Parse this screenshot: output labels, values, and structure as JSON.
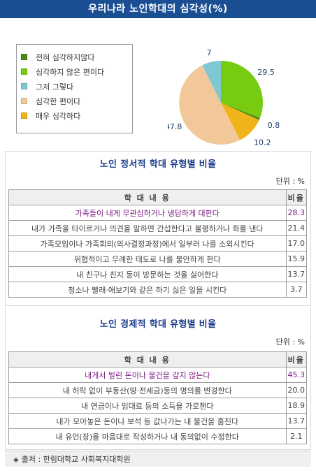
{
  "title": "우리나라 노인학대의 심각성(%)",
  "chart_data": {
    "type": "pie",
    "title": "우리나라 노인학대의 심각성(%)",
    "categories": [
      "전혀 심각하지않다",
      "심각하지 않은 편이다",
      "그저 그렇다",
      "심각한 편이다",
      "매우 심각하다"
    ],
    "values": [
      0.8,
      29.5,
      7,
      47.8,
      10.2
    ],
    "value_labels": [
      "0.8",
      "29.5",
      "7",
      "47.8",
      "10.2"
    ],
    "colors": [
      "#4d8c17",
      "#77cc12",
      "#7ec8d4",
      "#f2c89a",
      "#efb41a"
    ],
    "legend_placement": "left"
  },
  "section1": {
    "title": "노인 정서적 학대 유형별 비율",
    "unit": "단위 : %",
    "header": [
      "학 대 내 용",
      "비율"
    ],
    "rows": [
      {
        "text": "가족들이 내게 무관심하거나 냉담하게 대한다",
        "value": "28.3"
      },
      {
        "text": "내가 가족을 타이르거나 의견을 말하면 간섭한다고 불평하거나 화를 낸다",
        "value": "21.4"
      },
      {
        "text": "가족모임이나 가족회의(의사결정과정)에서 일부러 나를 소외시킨다",
        "value": "17.0"
      },
      {
        "text": "위협적이고 무례한 태도로 나를 불안하게 한다",
        "value": "15.9"
      },
      {
        "text": "내 친구나 친지 등이 방문하는 것을 싫어한다",
        "value": "13.7"
      },
      {
        "text": "청소나 빨래·애보기와 같은 하기 싫은 일을 시킨다",
        "value": "3.7"
      }
    ]
  },
  "section2": {
    "title": "노인 경제적 학대 유형별 비율",
    "unit": "단위 : %",
    "header": [
      "학 대 내 용",
      "비율"
    ],
    "rows": [
      {
        "text": "내게서 빌린 돈이나 물건을 갚지 않는다",
        "value": "45.3"
      },
      {
        "text": "내 허락 없이 부동산(땅·전세금)등의 명의를 변경한다",
        "value": "20.0"
      },
      {
        "text": "내 연금이나 임대료 등의 소득을 가로챈다",
        "value": "18.9"
      },
      {
        "text": "내가 모아놓은 돈이나 보석 등 값나가는 내 물건을 훔친다",
        "value": "13.7"
      },
      {
        "text": "내 유언(장)을 마음대로 작성하거나 내 동의없이 수정한다",
        "value": "2.1"
      }
    ]
  },
  "source": {
    "icon": "diamond-icon",
    "symbol": "◈",
    "text": "출처 : 한림대학교 사회복지대학원"
  }
}
